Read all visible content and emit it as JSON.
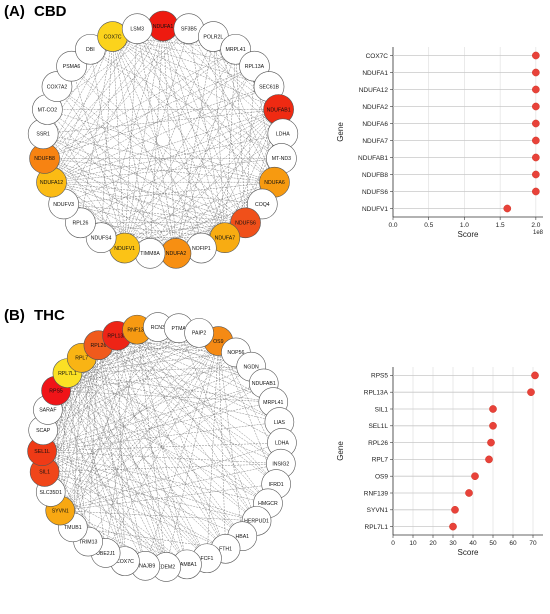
{
  "panels": [
    {
      "id": "A",
      "label": "(A)",
      "title": "CBD",
      "network": {
        "cx": 0,
        "cy": 0,
        "nodes": [
          {
            "name": "NDUFA1",
            "color": "#ee1a10"
          },
          {
            "name": "SF3B5",
            "color": "#ffffff"
          },
          {
            "name": "POLR2L",
            "color": "#ffffff"
          },
          {
            "name": "MRPL41",
            "color": "#ffffff"
          },
          {
            "name": "RPL13A",
            "color": "#ffffff"
          },
          {
            "name": "SEC61B",
            "color": "#ffffff"
          },
          {
            "name": "NDUFAB1",
            "color": "#ef2a12"
          },
          {
            "name": "LDHA",
            "color": "#ffffff"
          },
          {
            "name": "MT-ND3",
            "color": "#ffffff"
          },
          {
            "name": "NDUFA6",
            "color": "#f79a10"
          },
          {
            "name": "COQ4",
            "color": "#ffffff"
          },
          {
            "name": "NDUFS6",
            "color": "#f0501a"
          },
          {
            "name": "NDUFA7",
            "color": "#f8ac12"
          },
          {
            "name": "NOFIP1",
            "color": "#ffffff"
          },
          {
            "name": "NDUFA2",
            "color": "#f78f12"
          },
          {
            "name": "TIMM8A",
            "color": "#ffffff"
          },
          {
            "name": "NDUFV1",
            "color": "#fbc316"
          },
          {
            "name": "NDUFS4",
            "color": "#ffffff"
          },
          {
            "name": "RPL26",
            "color": "#ffffff"
          },
          {
            "name": "NDUFV3",
            "color": "#ffffff"
          },
          {
            "name": "NDUFA12",
            "color": "#fbbb14"
          },
          {
            "name": "NDUFB8",
            "color": "#f78312"
          },
          {
            "name": "SSR1",
            "color": "#ffffff"
          },
          {
            "name": "MT-CO2",
            "color": "#ffffff"
          },
          {
            "name": "COX7A2",
            "color": "#ffffff"
          },
          {
            "name": "PSMA6",
            "color": "#ffffff"
          },
          {
            "name": "DBI",
            "color": "#ffffff"
          },
          {
            "name": "COX7C",
            "color": "#fbd31c"
          },
          {
            "name": "LSM3",
            "color": "#ffffff"
          }
        ]
      },
      "dot_chart": {
        "type": "scatter",
        "categories": [
          "COX7C",
          "NDUFA1",
          "NDUFA12",
          "NDUFA2",
          "NDUFA6",
          "NDUFA7",
          "NDUFAB1",
          "NDUFB8",
          "NDUFS6",
          "NDUFV1"
        ],
        "values": [
          200000000,
          200000000,
          200000000,
          200000000,
          200000000,
          200000000,
          200000000,
          200000000,
          200000000,
          160000000
        ],
        "xlabel": "Score",
        "ylabel": "Gene",
        "x_ticks": [
          "0.0",
          "0.5",
          "1.0",
          "1.5",
          "2.0"
        ],
        "x_exponent": "1e8",
        "xlim": [
          0,
          210000000
        ],
        "tick_scale": 100000000,
        "dot_color": "#e8423a"
      }
    },
    {
      "id": "B",
      "label": "(B)",
      "title": "THC",
      "network": {
        "nodes": [
          {
            "name": "OS9",
            "color": "#f58a14"
          },
          {
            "name": "NOP56",
            "color": "#ffffff"
          },
          {
            "name": "NGDN",
            "color": "#ffffff"
          },
          {
            "name": "NDUFAB1",
            "color": "#ffffff"
          },
          {
            "name": "MRPL41",
            "color": "#ffffff"
          },
          {
            "name": "LIAS",
            "color": "#ffffff"
          },
          {
            "name": "LDHA",
            "color": "#ffffff"
          },
          {
            "name": "INSIG2",
            "color": "#ffffff"
          },
          {
            "name": "IFRD1",
            "color": "#ffffff"
          },
          {
            "name": "HMGCR",
            "color": "#ffffff"
          },
          {
            "name": "HERPUD1",
            "color": "#ffffff"
          },
          {
            "name": "HBA1",
            "color": "#ffffff"
          },
          {
            "name": "FTH1",
            "color": "#ffffff"
          },
          {
            "name": "FCF1",
            "color": "#ffffff"
          },
          {
            "name": "FAM8A1",
            "color": "#ffffff"
          },
          {
            "name": "EDEM2",
            "color": "#ffffff"
          },
          {
            "name": "DNAJB9",
            "color": "#ffffff"
          },
          {
            "name": "COX7C",
            "color": "#ffffff"
          },
          {
            "name": "UBE2J1",
            "color": "#ffffff"
          },
          {
            "name": "TRIM13",
            "color": "#ffffff"
          },
          {
            "name": "TMUB1",
            "color": "#ffffff"
          },
          {
            "name": "SYVN1",
            "color": "#f8a812"
          },
          {
            "name": "SLC35D1",
            "color": "#ffffff"
          },
          {
            "name": "SIL1",
            "color": "#f0461a"
          },
          {
            "name": "SEL1L",
            "color": "#ef3a16"
          },
          {
            "name": "SCAP",
            "color": "#ffffff"
          },
          {
            "name": "SARAF",
            "color": "#ffffff"
          },
          {
            "name": "RPS5",
            "color": "#f01418"
          },
          {
            "name": "RPL7L1",
            "color": "#fbe024"
          },
          {
            "name": "RPL7",
            "color": "#f9b414"
          },
          {
            "name": "RPL26",
            "color": "#f05a1c"
          },
          {
            "name": "RPL13A",
            "color": "#ee2416"
          },
          {
            "name": "RNF139",
            "color": "#f79a12"
          },
          {
            "name": "RCN3",
            "color": "#ffffff"
          },
          {
            "name": "PTMA",
            "color": "#ffffff"
          },
          {
            "name": "PAIP2",
            "color": "#ffffff"
          }
        ]
      },
      "dot_chart": {
        "type": "scatter",
        "categories": [
          "RPS5",
          "RPL13A",
          "SIL1",
          "SEL1L",
          "RPL26",
          "RPL7",
          "OS9",
          "RNF139",
          "SYVN1",
          "RPL7L1"
        ],
        "values": [
          71,
          69,
          50,
          50,
          49,
          48,
          41,
          38,
          31,
          30
        ],
        "xlabel": "Score",
        "ylabel": "Gene",
        "x_ticks": [
          "0",
          "10",
          "20",
          "30",
          "40",
          "50",
          "60",
          "70"
        ],
        "x_exponent": "",
        "xlim": [
          0,
          75
        ],
        "tick_scale": 1,
        "dot_color": "#e8423a"
      }
    }
  ]
}
